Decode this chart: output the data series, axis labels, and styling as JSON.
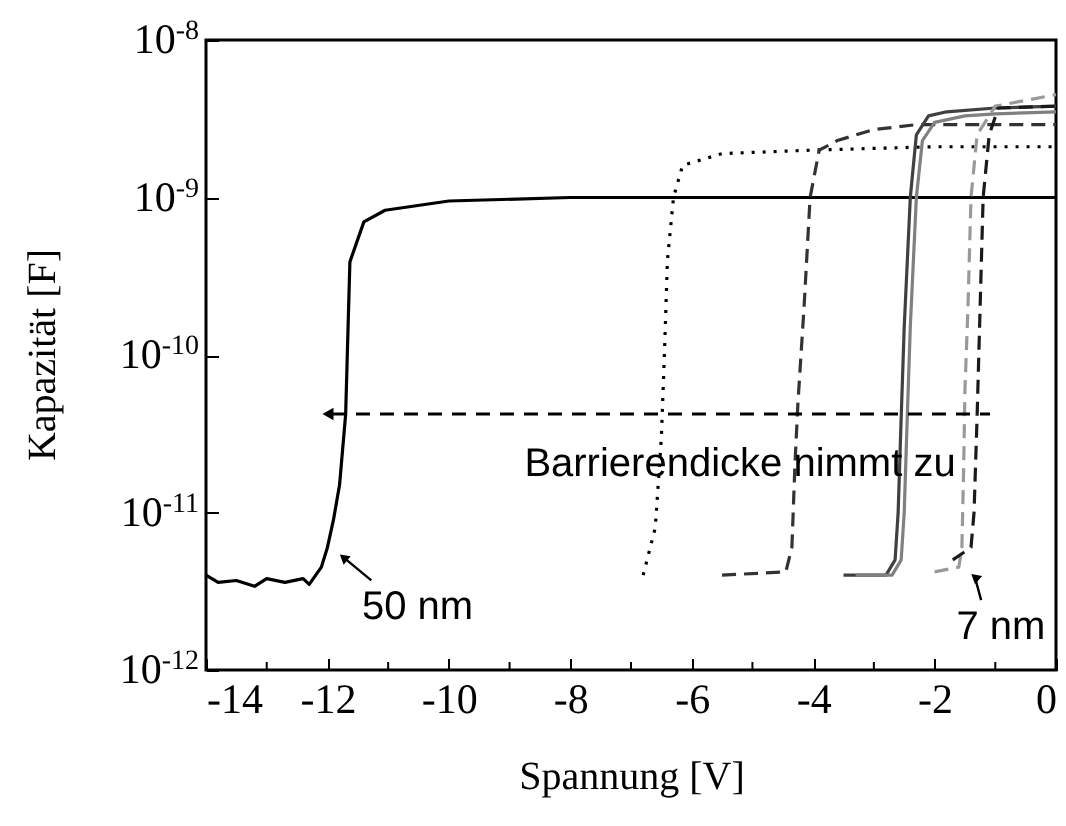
{
  "chart_data": {
    "type": "line",
    "xlabel": "Spannung [V]",
    "ylabel": "Kapazität [F]",
    "log": "y",
    "grid": false,
    "marker": "none",
    "xlim": [
      -14,
      0
    ],
    "xticks": [
      -14,
      {
        "value": -13,
        "label": null
      },
      -12,
      {
        "value": -11,
        "label": null
      },
      -10,
      {
        "value": -9,
        "label": null
      },
      -8,
      {
        "value": -7,
        "label": null
      },
      -6,
      {
        "value": -5,
        "label": null
      },
      -4,
      {
        "value": -3,
        "label": null
      },
      -2,
      {
        "value": -1,
        "label": null
      },
      0
    ],
    "ylim": [
      1e-12,
      1e-08
    ],
    "yticks": [
      {
        "value": 1e-12,
        "label": "10$^{-12}$"
      },
      {
        "value": 1e-11,
        "label": "10$^{-11}$"
      },
      {
        "value": 1e-10,
        "label": "10$^{-10}$"
      },
      {
        "value": 1e-09,
        "label": "10$^{-9}$"
      },
      {
        "value": 1e-08,
        "label": "10$^{-8}$"
      }
    ],
    "series": [
      {
        "color": "#000000",
        "line_style": "solid",
        "x": [
          -14,
          -13.8,
          -13.5,
          -13.2,
          -13,
          -12.7,
          -12.4,
          -12.3,
          -12.1,
          -12.0,
          -11.9,
          -11.8,
          -11.7,
          -11.63,
          -11.4,
          -11.05,
          -10,
          -8,
          -6,
          -4,
          -2,
          0
        ],
        "values": [
          4e-12,
          3.6e-12,
          3.7e-12,
          3.4e-12,
          3.8e-12,
          3.6e-12,
          3.8e-12,
          3.5e-12,
          4.5e-12,
          6e-12,
          9e-12,
          1.5e-11,
          4.2e-11,
          3.9e-10,
          7e-10,
          8.3e-10,
          9.5e-10,
          1e-09,
          1e-09,
          1e-09,
          1e-09,
          1e-09
        ]
      },
      {
        "color": "#000000",
        "line_style": "dotted",
        "x": [
          -6.8,
          -6.6,
          -6.5,
          -6.45,
          -6.4,
          -6.3,
          -6.15,
          -5.5,
          -4,
          -2,
          0
        ],
        "values": [
          4e-12,
          8e-12,
          3e-11,
          1e-10,
          4e-10,
          1e-09,
          1.6e-09,
          1.9e-09,
          2e-09,
          2.1e-09,
          2.1e-09
        ]
      },
      {
        "color": "#333333",
        "line_style": "dashed",
        "x": [
          -5.5,
          -4.45,
          -4.35,
          -4.3,
          -4.25,
          -4.15,
          -4.05,
          -3.9,
          -3.6,
          -3,
          -2.3,
          -1,
          0
        ],
        "values": [
          4e-12,
          4.2e-12,
          6e-12,
          2e-11,
          5e-11,
          2e-10,
          1e-09,
          2e-09,
          2.3e-09,
          2.7e-09,
          2.9e-09,
          2.9e-09,
          2.9e-09
        ]
      },
      {
        "color": "#404040",
        "line_style": "solid",
        "x": [
          -3.5,
          -2.8,
          -2.65,
          -2.6,
          -2.55,
          -2.5,
          -2.4,
          -2.3,
          -2.1,
          -1.8,
          -1,
          0
        ],
        "values": [
          4e-12,
          4e-12,
          5e-12,
          1e-11,
          4e-11,
          1.5e-10,
          1e-09,
          2.5e-09,
          3.3e-09,
          3.5e-09,
          3.7e-09,
          3.8e-09
        ]
      },
      {
        "color": "#808080",
        "line_style": "solid",
        "x": [
          -3.3,
          -2.7,
          -2.55,
          -2.5,
          -2.45,
          -2.4,
          -2.3,
          -2.2,
          -2,
          -1.5,
          -1,
          0
        ],
        "values": [
          4e-12,
          4e-12,
          5e-12,
          1e-11,
          4e-11,
          1.5e-10,
          1e-09,
          2.3e-09,
          3e-09,
          3.3e-09,
          3.4e-09,
          3.5e-09
        ]
      },
      {
        "color": "#999999",
        "line_style": "dashed",
        "x": [
          -2.0,
          -1.6,
          -1.55,
          -1.52,
          -1.5,
          -1.45,
          -1.4,
          -1.3,
          -1,
          0
        ],
        "values": [
          4.2e-12,
          4.5e-12,
          6e-12,
          2e-11,
          6e-11,
          2e-10,
          1e-09,
          2.5e-09,
          3.8e-09,
          4.5e-09
        ]
      },
      {
        "color": "#1a1a1a",
        "line_style": "dashed",
        "x": [
          -1.7,
          -1.4,
          -1.35,
          -1.3,
          -1.25,
          -1.2,
          -1.1,
          -0.95,
          0
        ],
        "values": [
          5e-12,
          6e-12,
          1e-11,
          4e-11,
          2e-10,
          1e-09,
          2.5e-09,
          3.7e-09,
          3.8e-09
        ]
      }
    ],
    "annotations": [
      "Barrierendicke nimmt zu",
      {
        "text": "50 nm",
        "x": -11.9,
        "y": 6e-12
      },
      {
        "text": "7 nm",
        "x": -1.5,
        "y": 4.5e-12
      }
    ]
  }
}
